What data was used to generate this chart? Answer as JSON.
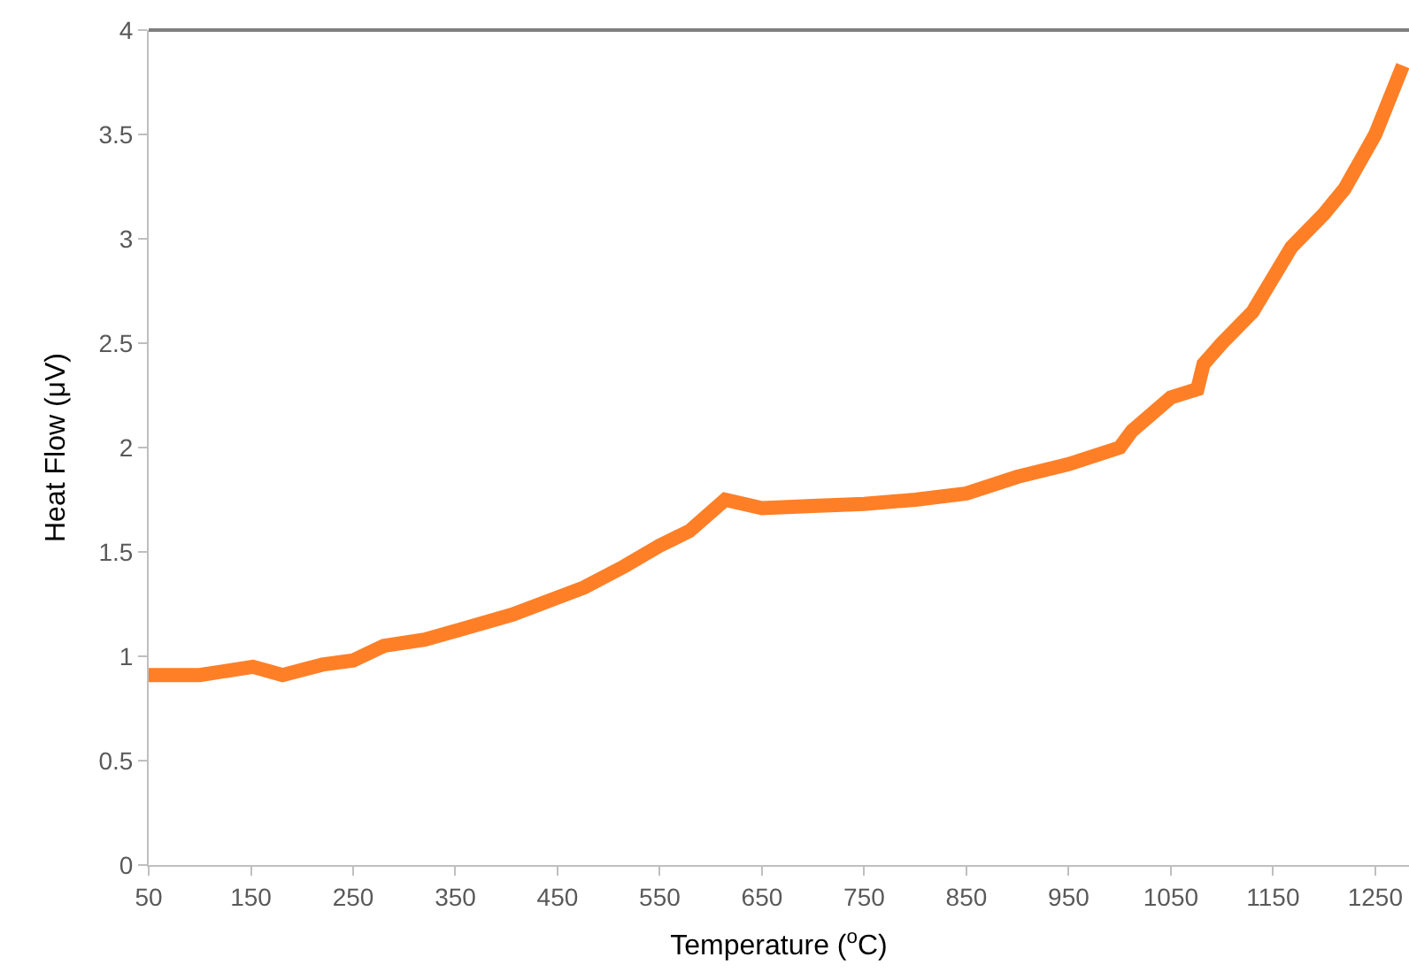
{
  "chart_data": {
    "type": "line",
    "xlabel": "Temperature ($^{o}$C)",
    "ylabel": "Heat Flow (μV)",
    "x": [
      50,
      100,
      152,
      181,
      220,
      250,
      280,
      320,
      349,
      406,
      476,
      515,
      550,
      579,
      614,
      650,
      700,
      750,
      800,
      850,
      900,
      950,
      1000,
      1012,
      1050,
      1076,
      1082,
      1100,
      1130,
      1168,
      1200,
      1220,
      1250,
      1277
    ],
    "series": [
      {
        "color": "#ff7f27",
        "values": [
          0.91,
          0.91,
          0.95,
          0.91,
          0.96,
          0.98,
          1.05,
          1.08,
          1.12,
          1.2,
          1.33,
          1.43,
          1.53,
          1.6,
          1.75,
          1.71,
          1.72,
          1.73,
          1.75,
          1.78,
          1.86,
          1.92,
          2.0,
          2.08,
          2.24,
          2.28,
          2.4,
          2.5,
          2.65,
          2.96,
          3.12,
          3.24,
          3.5,
          3.83
        ]
      }
    ],
    "xlim": [
      50,
      1283
    ],
    "xticks": [
      50,
      150,
      250,
      350,
      450,
      550,
      650,
      750,
      850,
      950,
      1050,
      1150,
      1250
    ],
    "ylim": [
      0,
      4
    ],
    "yticks": [
      0,
      0.5,
      1,
      1.5,
      2,
      2.5,
      3,
      3.5,
      4
    ],
    "grid": false,
    "legend": false,
    "marker": "none",
    "line_style": "solid"
  }
}
